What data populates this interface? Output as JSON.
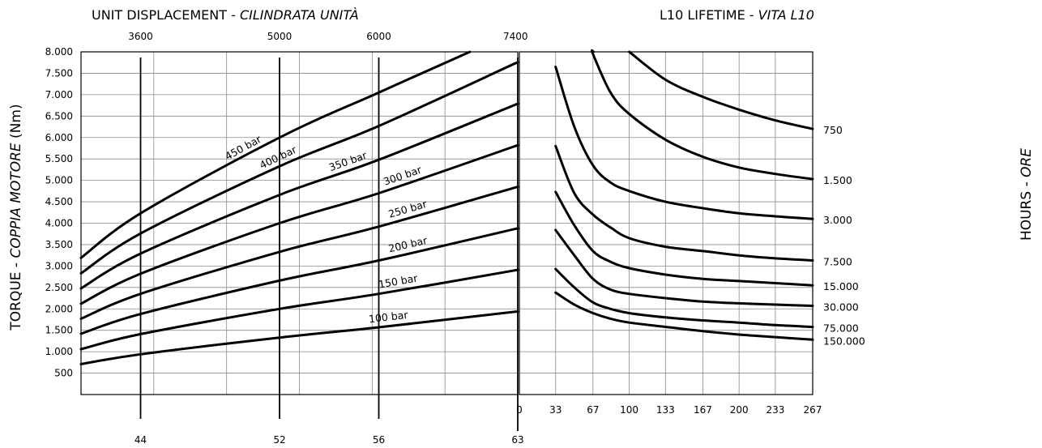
{
  "chart_data": [
    {
      "type": "line",
      "title": "UNIT DISPLACEMENT - ",
      "title_italic": "CILINDRATA UNITÀ",
      "ylabel": "TORQUE - ",
      "ylabel_italic": "COPPIA MOTORE",
      "ylabel_unit": " (Nm)",
      "y_ticks": [
        "8.000",
        "7.500",
        "7.000",
        "6.500",
        "6.000",
        "5.500",
        "5.000",
        "4.500",
        "4.000",
        "3.500",
        "3.000",
        "2.500",
        "2.000",
        "1.500",
        "1.000",
        "500"
      ],
      "y_tick_values": [
        8000,
        7500,
        7000,
        6500,
        6000,
        5500,
        5000,
        4500,
        4000,
        3500,
        3000,
        2500,
        2000,
        1500,
        1000,
        500
      ],
      "ylim": [
        0,
        8000
      ],
      "x_range": [
        3000,
        7400
      ],
      "top_axis_ticks": [
        {
          "label": "3600",
          "x": 3600
        },
        {
          "label": "5000",
          "x": 5000
        },
        {
          "label": "6000",
          "x": 6000
        },
        {
          "label": "7400",
          "x": 7400
        }
      ],
      "bottom_axis_ticks": [
        {
          "label": "44",
          "x": 3600
        },
        {
          "label": "52",
          "x": 5000
        },
        {
          "label": "56",
          "x": 6000
        },
        {
          "label": "63",
          "x": 7400
        }
      ],
      "reference_lines_x": [
        3600,
        5000,
        6000,
        7400
      ],
      "grid": true,
      "x": [
        3000,
        3600,
        5000,
        6000,
        7400
      ],
      "series": [
        {
          "name": "450 bar",
          "values": [
            3190,
            4230,
            6000,
            7050,
            8500
          ]
        },
        {
          "name": "400 bar",
          "values": [
            2830,
            3760,
            5330,
            6270,
            7760
          ]
        },
        {
          "name": "350 bar",
          "values": [
            2480,
            3290,
            4660,
            5480,
            6790
          ]
        },
        {
          "name": "300 bar",
          "values": [
            2120,
            2820,
            4000,
            4700,
            5820
          ]
        },
        {
          "name": "250 bar",
          "values": [
            1770,
            2350,
            3330,
            3920,
            4850
          ]
        },
        {
          "name": "200 bar",
          "values": [
            1420,
            1880,
            2660,
            3130,
            3880
          ]
        },
        {
          "name": "150 bar",
          "values": [
            1060,
            1410,
            2000,
            2350,
            2910
          ]
        },
        {
          "name": "100 bar",
          "values": [
            710,
            940,
            1330,
            1570,
            1940
          ]
        }
      ]
    },
    {
      "type": "line",
      "title": "L10 LIFETIME - ",
      "title_italic": "VITA L10",
      "ylabel": "HOURS - ",
      "ylabel_italic": "ORE",
      "ylim": [
        0,
        8000
      ],
      "xlim": [
        0,
        267
      ],
      "x_ticks": [
        0,
        33,
        67,
        100,
        133,
        167,
        200,
        233,
        267
      ],
      "grid": true,
      "x": [
        33,
        50,
        67,
        83,
        100,
        133,
        167,
        200,
        233,
        267
      ],
      "series": [
        {
          "name": "750",
          "values": [
            null,
            null,
            null,
            null,
            8000,
            7350,
            6950,
            6650,
            6400,
            6200
          ]
        },
        {
          "name": "1.500",
          "values": [
            null,
            null,
            7950,
            7050,
            6550,
            5950,
            5550,
            5300,
            5150,
            5030
          ]
        },
        {
          "name": "3.000",
          "values": [
            7650,
            6250,
            5350,
            4950,
            4750,
            4500,
            4350,
            4230,
            4160,
            4100
          ]
        },
        {
          "name": "7.500",
          "values": [
            5800,
            4700,
            4200,
            3900,
            3650,
            3450,
            3350,
            3250,
            3180,
            3130
          ]
        },
        {
          "name": "15.000",
          "values": [
            4730,
            3950,
            3350,
            3100,
            2950,
            2800,
            2700,
            2650,
            2600,
            2550
          ]
        },
        {
          "name": "30.000",
          "values": [
            3840,
            3250,
            2700,
            2450,
            2350,
            2250,
            2170,
            2130,
            2100,
            2070
          ]
        },
        {
          "name": "75.000",
          "values": [
            2930,
            2500,
            2150,
            2000,
            1900,
            1800,
            1730,
            1680,
            1620,
            1580
          ]
        },
        {
          "name": "150.000",
          "values": [
            2380,
            2100,
            1900,
            1770,
            1680,
            1580,
            1480,
            1400,
            1340,
            1280
          ]
        }
      ]
    }
  ]
}
